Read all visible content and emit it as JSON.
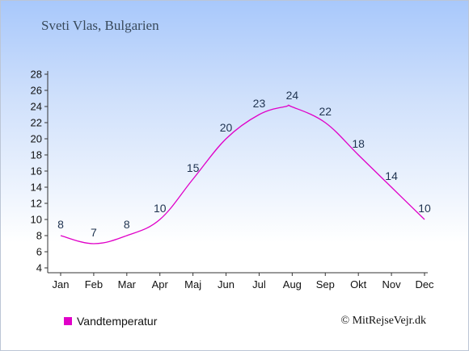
{
  "location": "Sveti Vlas, Bulgarien",
  "legend": {
    "label": "Vandtemperatur",
    "color": "#e000c8"
  },
  "copyright": "© MitRejseVejr.dk",
  "chart_data": {
    "type": "line",
    "title": "Sveti Vlas, Bulgarien",
    "xlabel": "",
    "ylabel": "",
    "categories": [
      "Jan",
      "Feb",
      "Mar",
      "Apr",
      "Maj",
      "Jun",
      "Jul",
      "Aug",
      "Sep",
      "Okt",
      "Nov",
      "Dec"
    ],
    "series": [
      {
        "name": "Vandtemperatur",
        "values": [
          8,
          7,
          8,
          10,
          15,
          20,
          23,
          24,
          22,
          18,
          14,
          10
        ],
        "peak": {
          "x_month_index": 6.8,
          "value": 24
        }
      }
    ],
    "ylim": [
      4,
      28
    ],
    "yticks": [
      4,
      6,
      8,
      10,
      12,
      14,
      16,
      18,
      20,
      22,
      24,
      26,
      28
    ],
    "grid": false,
    "legend_position": "bottom-left",
    "line_color": "#e000c8"
  }
}
